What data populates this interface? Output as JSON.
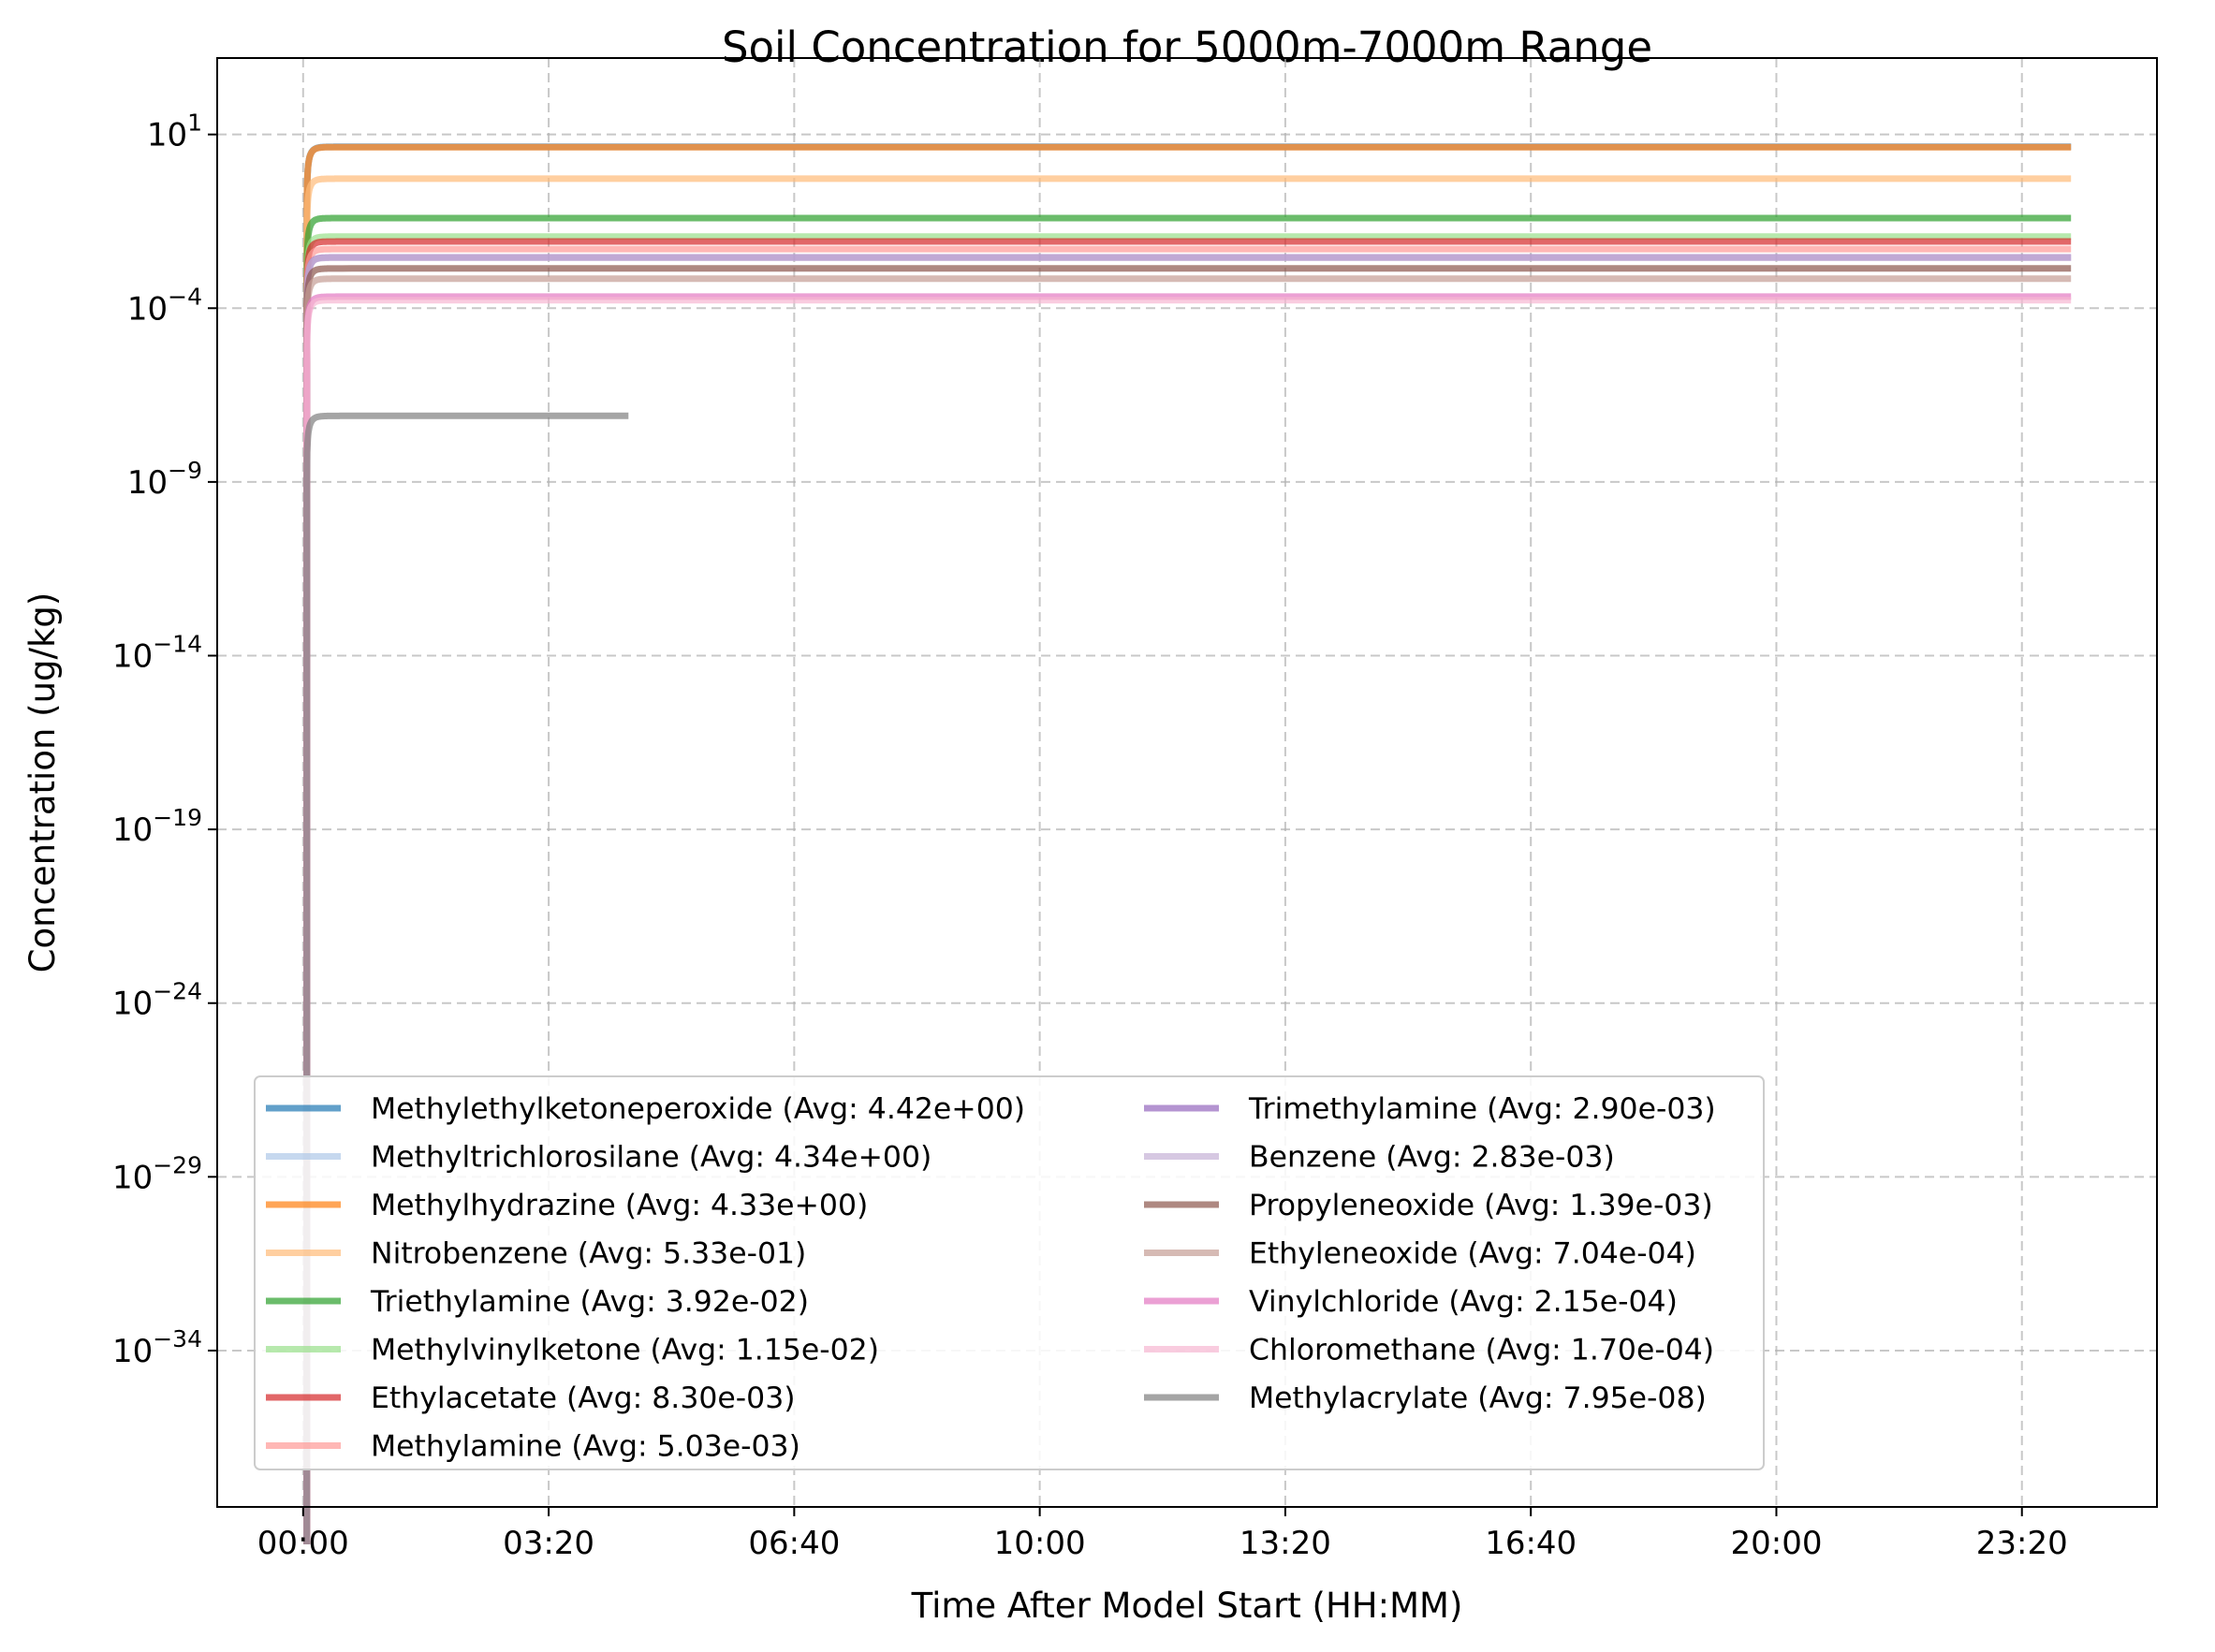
{
  "chart_data": {
    "type": "line",
    "title": "Soil Concentration for 5000m-7000m Range",
    "xlabel": "Time After Model Start (HH:MM)",
    "ylabel": "Concentration (ug/kg)",
    "x_unit": "minutes after model start",
    "xlim": [
      -70,
      1510
    ],
    "x_ticks": [
      0,
      200,
      400,
      600,
      800,
      1000,
      1200,
      1400
    ],
    "x_tick_labels": [
      "00:00",
      "03:20",
      "06:40",
      "10:00",
      "13:20",
      "16:40",
      "20:00",
      "23:20"
    ],
    "y_scale": "log",
    "ylim_log10": [
      -38.5,
      3.2
    ],
    "y_ticks_log10": [
      1,
      -4,
      -9,
      -14,
      -19,
      -24,
      -29,
      -34
    ],
    "y_tick_labels": [
      {
        "base": "10",
        "exp": "1"
      },
      {
        "base": "10",
        "exp": "−4"
      },
      {
        "base": "10",
        "exp": "−9"
      },
      {
        "base": "10",
        "exp": "−14"
      },
      {
        "base": "10",
        "exp": "−19"
      },
      {
        "base": "10",
        "exp": "−24"
      },
      {
        "base": "10",
        "exp": "−29"
      },
      {
        "base": "10",
        "exp": "−34"
      }
    ],
    "grid": true,
    "legend_position": "lower-left",
    "legend_columns": 2,
    "series": [
      {
        "name": "Methylethylketoneperoxide (Avg: 4.42e+00)",
        "color": "#1f77b4",
        "alpha": 0.7,
        "plateau": 4.42,
        "x_end": 1440
      },
      {
        "name": "Methyltrichlorosilane (Avg: 4.34e+00)",
        "color": "#aec7e8",
        "alpha": 0.7,
        "plateau": 4.34,
        "x_end": 1440
      },
      {
        "name": "Methylhydrazine (Avg: 4.33e+00)",
        "color": "#ff7f0e",
        "alpha": 0.7,
        "plateau": 4.33,
        "x_end": 1440
      },
      {
        "name": "Nitrobenzene (Avg: 5.33e-01)",
        "color": "#ffbb78",
        "alpha": 0.7,
        "plateau": 0.533,
        "x_end": 1440
      },
      {
        "name": "Triethylamine (Avg: 3.92e-02)",
        "color": "#2ca02c",
        "alpha": 0.7,
        "plateau": 0.0392,
        "x_end": 1440
      },
      {
        "name": "Methylvinylketone (Avg: 1.15e-02)",
        "color": "#98df8a",
        "alpha": 0.7,
        "plateau": 0.0115,
        "x_end": 1440
      },
      {
        "name": "Ethylacetate (Avg: 8.30e-03)",
        "color": "#d62728",
        "alpha": 0.7,
        "plateau": 0.0083,
        "x_end": 1440
      },
      {
        "name": "Methylamine (Avg: 5.03e-03)",
        "color": "#ff9896",
        "alpha": 0.7,
        "plateau": 0.00503,
        "x_end": 1440
      },
      {
        "name": "Trimethylamine (Avg: 2.90e-03)",
        "color": "#9467bd",
        "alpha": 0.7,
        "plateau": 0.0029,
        "x_end": 1440
      },
      {
        "name": "Benzene (Avg: 2.83e-03)",
        "color": "#c5b0d5",
        "alpha": 0.7,
        "plateau": 0.00283,
        "x_end": 1440
      },
      {
        "name": "Propyleneoxide (Avg: 1.39e-03)",
        "color": "#8c564b",
        "alpha": 0.7,
        "plateau": 0.00139,
        "x_end": 1440
      },
      {
        "name": "Ethyleneoxide (Avg: 7.04e-04)",
        "color": "#c49c94",
        "alpha": 0.7,
        "plateau": 0.000704,
        "x_end": 1440
      },
      {
        "name": "Vinylchloride (Avg: 2.15e-04)",
        "color": "#e377c2",
        "alpha": 0.7,
        "plateau": 0.000215,
        "x_end": 1440
      },
      {
        "name": "Chloromethane (Avg: 1.70e-04)",
        "color": "#f7b6d2",
        "alpha": 0.7,
        "plateau": 0.00017,
        "x_end": 1440
      },
      {
        "name": "Methylacrylate (Avg: 7.95e-08)",
        "color": "#7f7f7f",
        "alpha": 0.7,
        "plateau": 7.95e-08,
        "x_end": 265
      }
    ]
  }
}
